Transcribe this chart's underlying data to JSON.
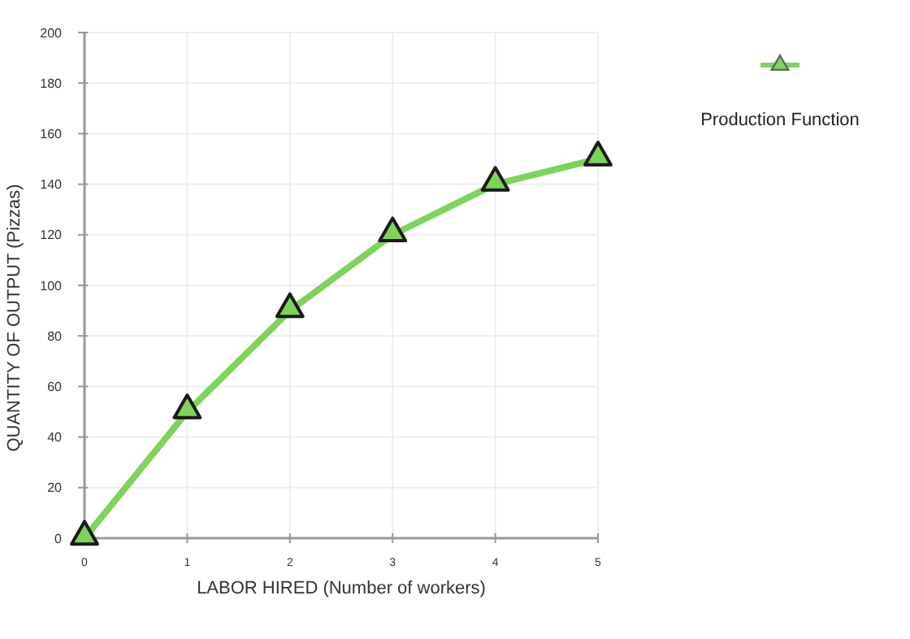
{
  "chart_data": {
    "type": "line",
    "xlabel": "LABOR HIRED (Number of workers)",
    "ylabel": "QUANTITY OF OUTPUT (Pizzas)",
    "x": [
      0,
      1,
      2,
      3,
      4,
      5
    ],
    "series": [
      {
        "name": "Production Function",
        "color": "#7ed35a",
        "values": [
          0,
          50,
          90,
          120,
          140,
          150
        ]
      }
    ],
    "xlim": [
      0,
      5
    ],
    "xticks": [
      0,
      1,
      2,
      3,
      4,
      5
    ],
    "ylim": [
      0,
      200
    ],
    "yticks": [
      0,
      20,
      40,
      60,
      80,
      100,
      120,
      140,
      160,
      180,
      200
    ],
    "grid": true,
    "legend": "top right",
    "marker": "triangle",
    "line_style": "solid"
  }
}
